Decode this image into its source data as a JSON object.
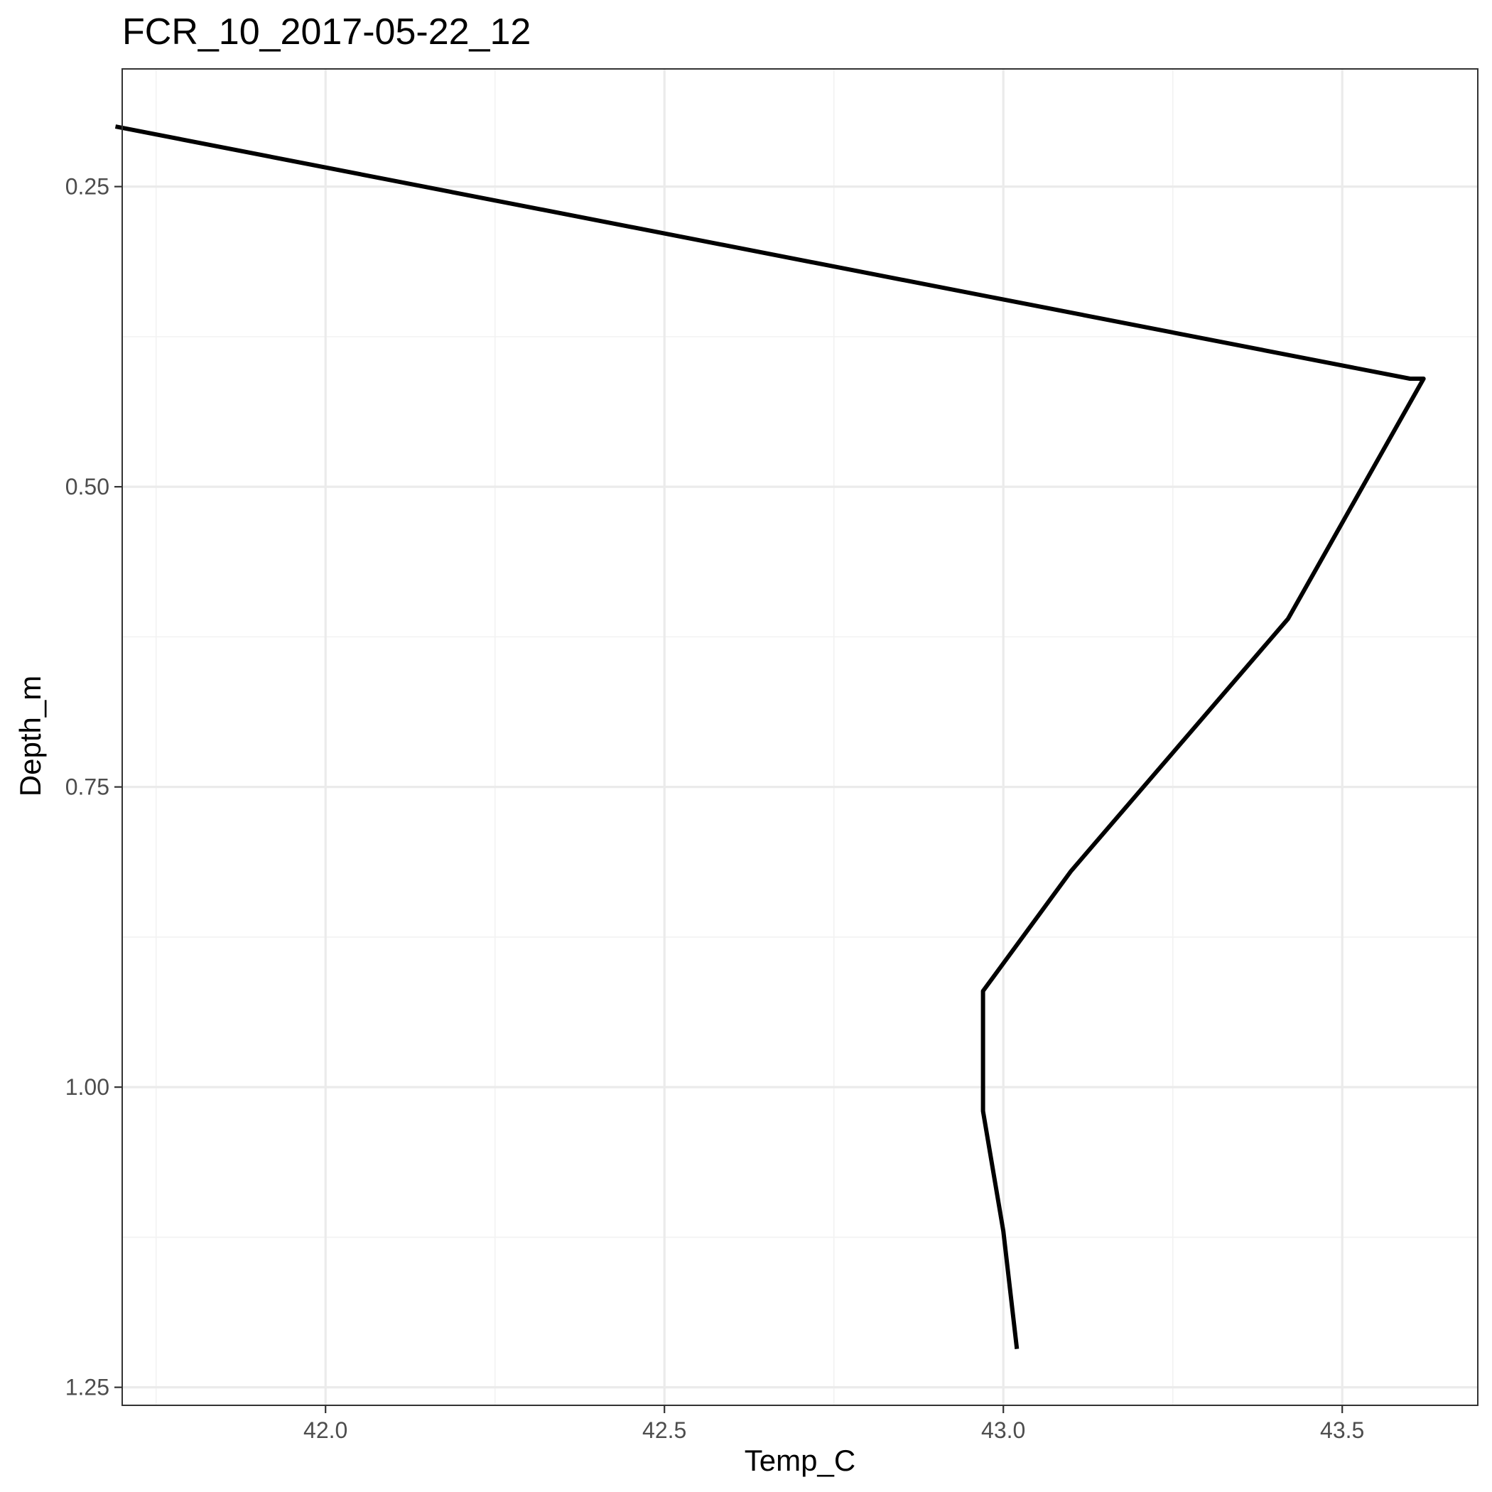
{
  "chart_data": {
    "type": "line",
    "title": "FCR_10_2017-05-22_12",
    "xlabel": "Temp_C",
    "ylabel": "Depth_m",
    "xlim": [
      41.7,
      43.7
    ],
    "ylim": [
      1.265,
      0.152
    ],
    "y_reversed": true,
    "x_ticks": [
      42.0,
      42.5,
      43.0,
      43.5
    ],
    "x_tick_labels": [
      "42.0",
      "42.5",
      "43.0",
      "43.5"
    ],
    "y_ticks": [
      0.25,
      0.5,
      0.75,
      1.0,
      1.25
    ],
    "y_tick_labels": [
      "0.25",
      "0.50",
      "0.75",
      "1.00",
      "1.25"
    ],
    "grid": true,
    "series": [
      {
        "color": "#000000",
        "points": [
          {
            "x": 41.69,
            "y": 0.2
          },
          {
            "x": 43.6,
            "y": 0.41
          },
          {
            "x": 43.62,
            "y": 0.41
          },
          {
            "x": 43.42,
            "y": 0.61
          },
          {
            "x": 43.1,
            "y": 0.82
          },
          {
            "x": 42.97,
            "y": 0.92
          },
          {
            "x": 42.97,
            "y": 1.02
          },
          {
            "x": 43.0,
            "y": 1.12
          },
          {
            "x": 43.02,
            "y": 1.218
          }
        ]
      }
    ]
  }
}
